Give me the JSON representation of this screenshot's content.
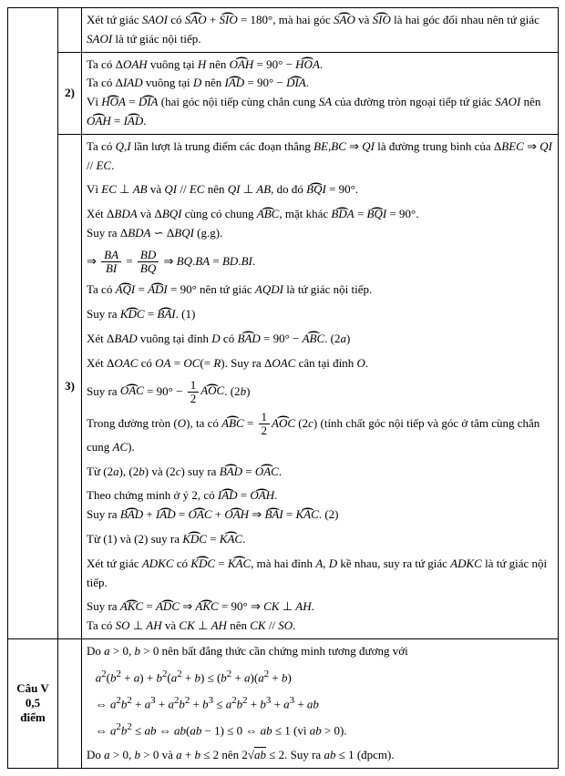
{
  "rows": {
    "r0": {
      "content": "Xét tứ giác <i>SAOI</i> có <span class='arc'>SAO</span> + <span class='arc'>SIO</span> = 180°, mà hai góc <span class='arc'>SAO</span> và <span class='arc'>SIO</span> là hai góc đối nhau nên tứ giác <i>SAOI</i> là tứ giác nội tiếp."
    },
    "r1": {
      "label": "2)",
      "content": "Ta có Δ<i>OAH</i> vuông tại <i>H</i> nên <span class='arc'>OAH</span> = 90° − <span class='arc'>HOA</span>.<br>Ta có Δ<i>IAD</i> vuông tại <i>D</i> nên <span class='arc'>IAD</span> = 90° − <span class='arc'>DIA</span>.<br>Vì <span class='arc'>HOA</span> = <span class='arc'>DIA</span> (hai góc nội tiếp cùng chắn cung <i>SA</i> của đường tròn ngoại tiếp tứ giác <i>SAOI</i> nên <span class='arc'>OAH</span> = <span class='arc'>IAD</span>."
    },
    "r2": {
      "label": "3)",
      "content": "Ta có <i>Q</i>,<i>I</i> lần lượt là trung điểm các đoạn thẳng <i>BE</i>,<i>BC</i> ⇒ <i>QI</i> là đường trung bình của Δ<i>BEC</i> ⇒ <i>QI</i> // <i>EC</i>.<div class='line-sp'></div>Vì <i>EC</i> ⊥ <i>AB</i> và <i>QI</i> // <i>EC</i> nên <i>QI</i> ⊥ <i>AB</i>, do đó <span class='arc'>BQI</span> = 90°.<div class='line-sp'></div>Xét Δ<i>BDA</i> và Δ<i>BQI</i> cùng có chung <span class='arc'>ABC</span>, mặt khác <span class='arc'>BDA</span> = <span class='arc'>BQI</span> = 90°.<br>Suy ra Δ<i>BDA</i> ∽ Δ<i>BQI</i> (g.g).<div class='line-sp'></div>⇒ <span class='frac'><span class='num'><i>BA</i></span><span class='den'><i>BI</i></span></span> = <span class='frac'><span class='num'><i>BD</i></span><span class='den'><i>BQ</i></span></span> ⇒ <i>BQ</i>.<i>BA</i> = <i>BD</i>.<i>BI</i>.<div class='line-sp'></div>Ta có <span class='arc'>AQI</span> = <span class='arc'>ADI</span> = 90° nên tứ giác <i>AQDI</i> là tứ giác nội tiếp.<div class='line-sp'></div>Suy ra <span class='arc'>KDC</span> = <span class='arc'>BAI</span>. (1)<div class='line-sp'></div>Xét Δ<i>BAD</i> vuông tại đỉnh <i>D</i> có <span class='arc'>BAD</span> = 90° − <span class='arc'>ABC</span>. (2<i>a</i>)<div class='line-sp'></div>Xét Δ<i>OAC</i> có <i>OA</i> = <i>OC</i>(= <i>R</i>). Suy ra Δ<i>OAC</i> cân tại đỉnh <i>O</i>.<div class='line-sp'></div>Suy ra <span class='arc'>OAC</span> = 90° − <span class='frac'><span class='num'>1</span><span class='den'>2</span></span><span class='arc'>AOC</span>. (2<i>b</i>)<div class='line-sp'></div>Trong đường tròn (<i>O</i>), ta có <span class='arc'>ABC</span> = <span class='frac'><span class='num'>1</span><span class='den'>2</span></span><span class='arc'>AOC</span> (2<i>c</i>) (tính chất góc nội tiếp và góc ở tâm cùng chắn cung <i>AC</i>).<div class='line-sp'></div>Từ (2<i>a</i>), (2<i>b</i>) và (2<i>c</i>) suy ra <span class='arc'>BAD</span> = <span class='arc'>OAC</span>.<div class='line-sp'></div>Theo chứng minh ở ý 2, có <span class='arc'>IAD</span> = <span class='arc'>OAH</span>.<br>Suy ra <span class='arc'>BAD</span> + <span class='arc'>IAD</span> = <span class='arc'>OAC</span> + <span class='arc'>OAH</span> ⇒ <span class='arc'>BAI</span> = <span class='arc'>KAC</span>. (2)<div class='line-sp'></div>Từ (1) và (2) suy ra <span class='arc'>KDC</span> = <span class='arc'>KAC</span>.<div class='line-sp'></div>Xét tứ giác <i>ADKC</i> có <span class='arc'>KDC</span> = <span class='arc'>KAC</span>, mà hai đỉnh <i>A</i>, <i>D</i> kề nhau, suy ra tứ giác <i>ADKC</i> là tứ giác nội tiếp.<div class='line-sp'></div>Suy ra <span class='arc'>AKC</span> = <span class='arc'>ADC</span> ⇒ <span class='arc'>AKC</span> = 90° ⇒ <i>CK</i> ⊥ <i>AH</i>.<br>Ta có <i>SO</i> ⊥ <i>AH</i> và <i>CK</i> ⊥ <i>AH</i> nên <i>CK</i> // <i>SO</i>."
    },
    "r3": {
      "question": "Câu V<br>0,5 điểm",
      "content": "Do <i>a</i> > 0, <i>b</i> > 0 nên bất đẳng thức cần chứng minh tương đương với<div class='line-sp'></div>&nbsp;&nbsp;&nbsp;<i>a</i><sup>2</sup>(<i>b</i><sup>2</sup> + <i>a</i>) + <i>b</i><sup>2</sup>(<i>a</i><sup>2</sup> + <i>b</i>) ≤ (<i>b</i><sup>2</sup> + <i>a</i>)(<i>a</i><sup>2</sup> + <i>b</i>)<div class='line-sp'></div>&nbsp;&nbsp;&nbsp;⇔ <i>a</i><sup>2</sup><i>b</i><sup>2</sup> + <i>a</i><sup>3</sup> + <i>a</i><sup>2</sup><i>b</i><sup>2</sup> + <i>b</i><sup>3</sup> ≤ <i>a</i><sup>2</sup><i>b</i><sup>2</sup> + <i>b</i><sup>3</sup> + <i>a</i><sup>3</sup> + <i>ab</i><div class='line-sp'></div>&nbsp;&nbsp;&nbsp;⇔ <i>a</i><sup>2</sup><i>b</i><sup>2</sup> ≤ <i>ab</i> ⇔ <i>ab</i>(<i>ab</i> − 1) ≤ 0 ⇔ <i>ab</i> ≤ 1 (vì <i>ab</i> > 0).<div class='line-sp'></div>Do <i>a</i> > 0, <i>b</i> > 0 và <i>a</i> + <i>b</i> ≤ 2 nên 2√<span style='text-decoration:overline'><i>ab</i></span> ≤ 2. Suy ra <i>ab</i> ≤ 1 (đpcm)."
    }
  }
}
